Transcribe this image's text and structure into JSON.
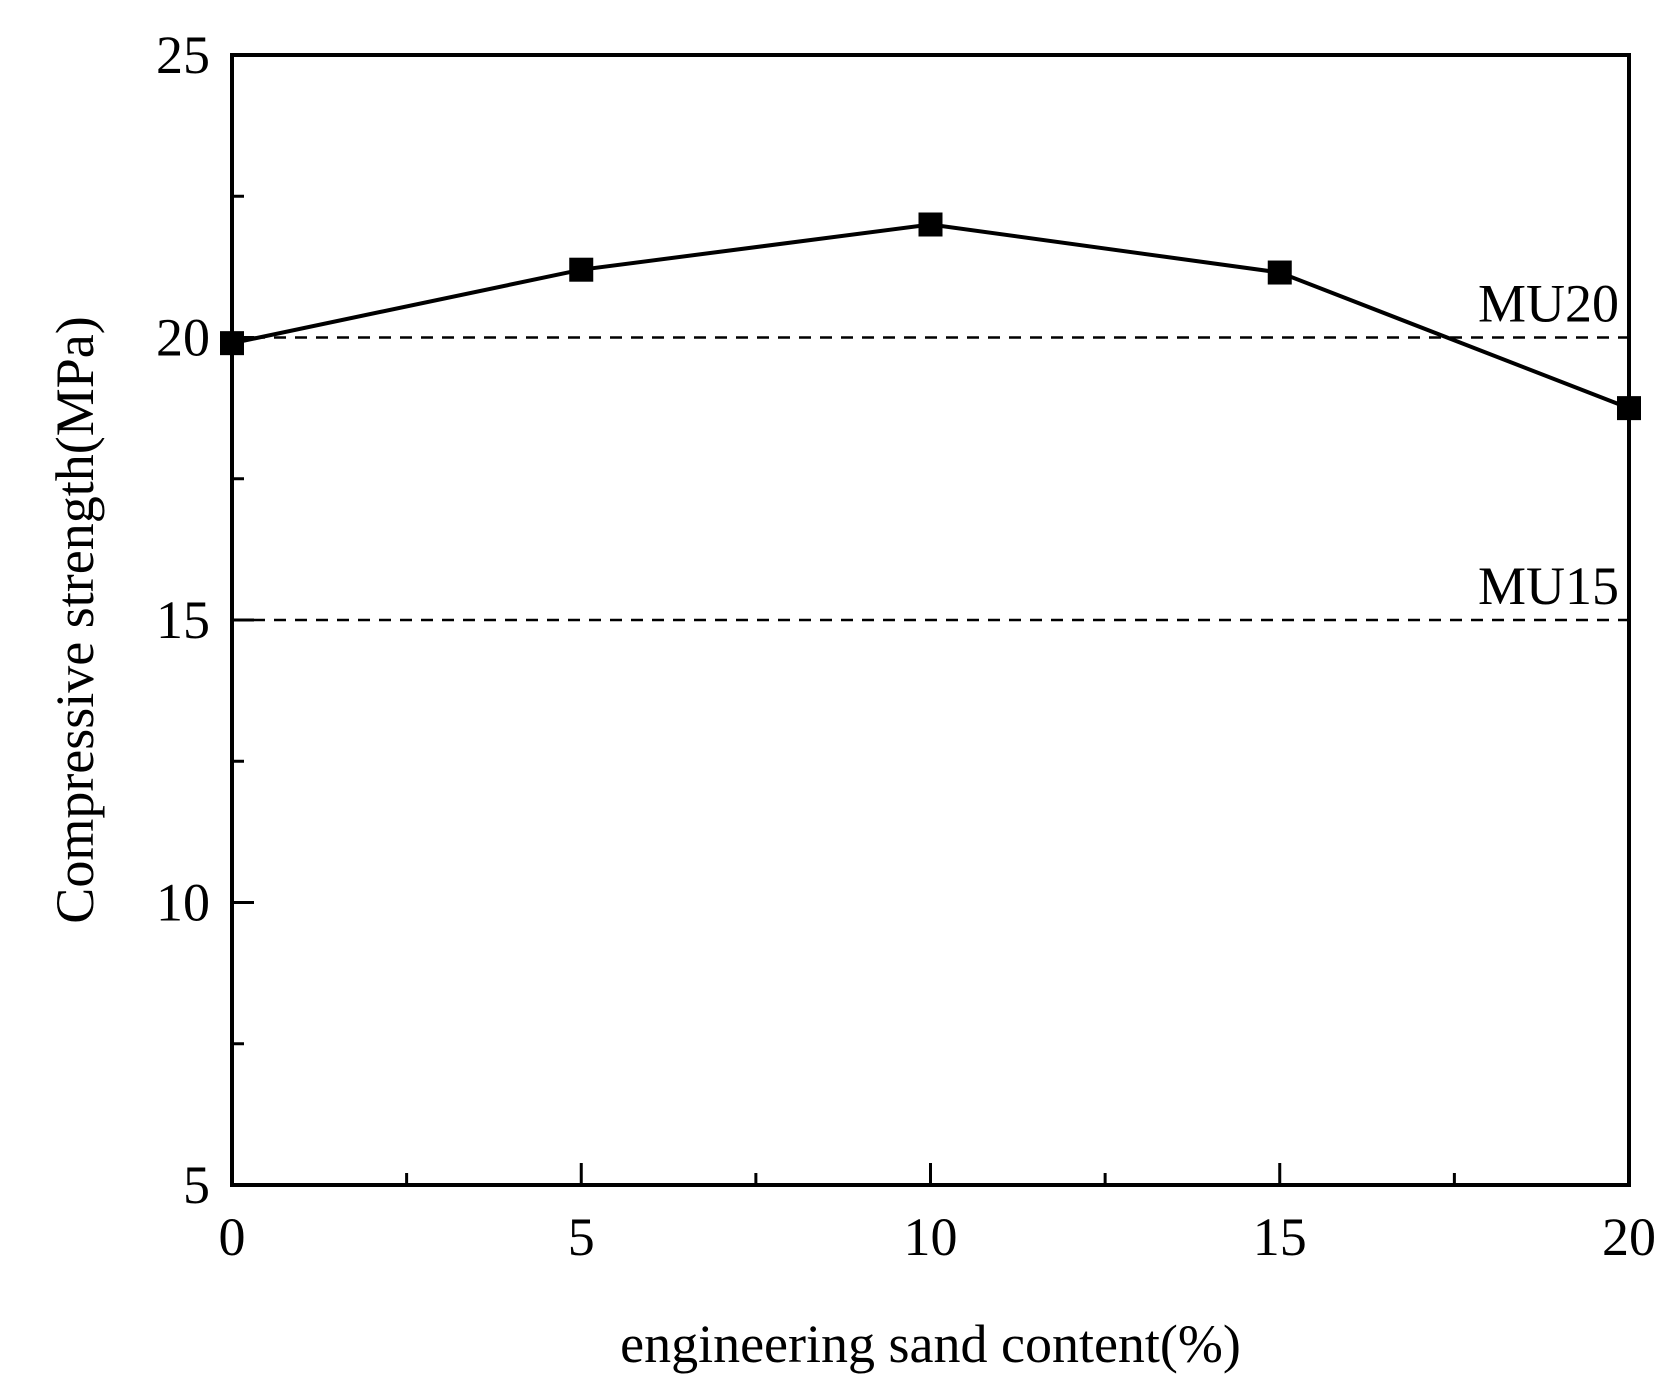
{
  "chart_data": {
    "type": "line",
    "title": "",
    "xlabel": "engineering sand content(%)",
    "ylabel": "Compressive strength(MPa)",
    "xlim": [
      0,
      20
    ],
    "ylim": [
      5,
      25
    ],
    "x_ticks": [
      0,
      5,
      10,
      15,
      20
    ],
    "y_ticks": [
      5,
      10,
      15,
      20,
      25
    ],
    "x_minor_ticks": [
      2.5,
      7.5,
      12.5,
      17.5
    ],
    "y_minor_ticks": [
      7.5,
      12.5,
      17.5,
      22.5
    ],
    "grid": false,
    "series": [
      {
        "x": [
          0,
          5,
          10,
          15,
          20
        ],
        "y": [
          19.9,
          21.2,
          22.0,
          21.15,
          18.75
        ],
        "marker": "square",
        "color": "#000000"
      }
    ],
    "reference_lines": [
      {
        "label": "MU20",
        "y": 20,
        "style": "dashed"
      },
      {
        "label": "MU15",
        "y": 15,
        "style": "dashed"
      }
    ]
  }
}
